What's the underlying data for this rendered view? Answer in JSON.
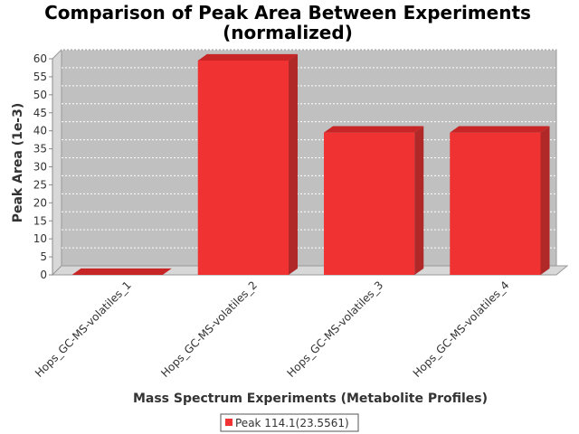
{
  "chart_data": {
    "type": "bar",
    "title": "Comparison of Peak Area Between Experiments",
    "subtitle": "(normalized)",
    "xlabel": "Mass Spectrum Experiments (Metabolite Profiles)",
    "ylabel": "Peak Area (1e-3)",
    "ylim": [
      0,
      60
    ],
    "yticks": [
      0,
      5,
      10,
      15,
      20,
      25,
      30,
      35,
      40,
      45,
      50,
      55,
      60
    ],
    "grid": true,
    "legend_position": "bottom",
    "categories": [
      "Hops_GC-MS-volatiles_1",
      "Hops_GC-MS-volatiles_2",
      "Hops_GC-MS-volatiles_3",
      "Hops_GC-MS-volatiles_4"
    ],
    "series": [
      {
        "name": "Peak 114.1(23.5561)",
        "values": [
          0,
          59.5,
          39.5,
          39.5
        ]
      }
    ]
  },
  "colors": {
    "bar_front": "#f03232",
    "bar_top": "#c82626",
    "bar_side": "#b02828",
    "plot_bg": "#c0c0c0",
    "plot_wall": "#d8d8d8"
  }
}
